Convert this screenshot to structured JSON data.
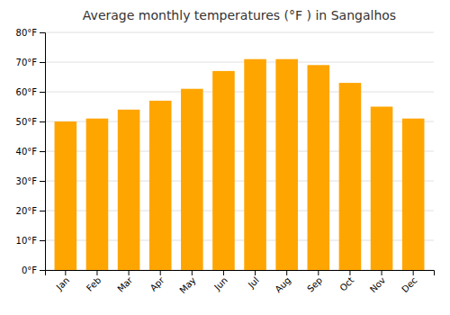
{
  "chart_data": {
    "type": "bar",
    "title": "Average monthly temperatures (°F ) in Sangalhos",
    "categories": [
      "Jan",
      "Feb",
      "Mar",
      "Apr",
      "May",
      "Jun",
      "Jul",
      "Aug",
      "Sep",
      "Oct",
      "Nov",
      "Dec"
    ],
    "values": [
      50,
      51,
      54,
      57,
      61,
      67,
      71,
      71,
      69,
      63,
      55,
      51
    ],
    "color": "#FFA500",
    "ylim": [
      0,
      80
    ],
    "yticks": [
      {
        "value": 0,
        "label": "0°F"
      },
      {
        "value": 10,
        "label": "10°F"
      },
      {
        "value": 20,
        "label": "20°F"
      },
      {
        "value": 30,
        "label": "30°F"
      },
      {
        "value": 40,
        "label": "40°F"
      },
      {
        "value": 50,
        "label": "50°F"
      },
      {
        "value": 60,
        "label": "60°F"
      },
      {
        "value": 70,
        "label": "70°F"
      },
      {
        "value": 80,
        "label": "80°F"
      }
    ],
    "grid": true
  }
}
